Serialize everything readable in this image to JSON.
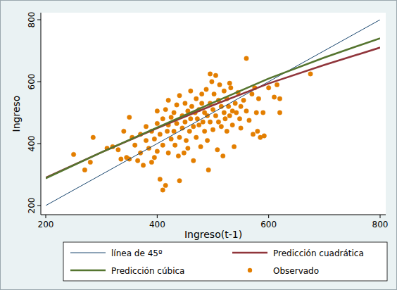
{
  "chart_data": {
    "type": "scatter",
    "x_label": "Ingreso(t-1)",
    "y_label": "Ingreso",
    "xlim": [
      200,
      800
    ],
    "ylim": [
      200,
      800
    ],
    "xticks": [
      200,
      400,
      600,
      800
    ],
    "yticks": [
      200,
      400,
      600,
      800
    ],
    "grid": false,
    "legend": "bottom",
    "series": [
      {
        "name": "línea de 45º",
        "type": "line",
        "color": "#1a476f",
        "line_style": "thin",
        "x": [
          200,
          800
        ],
        "values": [
          200,
          800
        ]
      },
      {
        "name": "Predicción cuadrática",
        "type": "line",
        "color": "#90353b",
        "line_style": "thick",
        "x": [
          200,
          300,
          400,
          500,
          600,
          700,
          800
        ],
        "values": [
          290,
          372,
          450,
          524,
          594,
          654,
          710
        ]
      },
      {
        "name": "Predicción cúbica",
        "type": "line",
        "color": "#55752f",
        "line_style": "thick",
        "x": [
          200,
          300,
          400,
          500,
          600,
          700,
          800
        ],
        "values": [
          288,
          372,
          452,
          532,
          610,
          678,
          740
        ]
      },
      {
        "name": "Observado",
        "type": "scatter",
        "color": "#e37e00",
        "marker": "circle",
        "x": [
          250,
          270,
          280,
          285,
          310,
          320,
          330,
          335,
          340,
          345,
          350,
          350,
          355,
          360,
          365,
          370,
          370,
          375,
          380,
          380,
          385,
          390,
          390,
          395,
          395,
          400,
          400,
          400,
          405,
          405,
          410,
          410,
          410,
          415,
          415,
          418,
          420,
          420,
          420,
          425,
          425,
          430,
          430,
          432,
          435,
          435,
          438,
          440,
          440,
          440,
          445,
          445,
          448,
          450,
          450,
          452,
          455,
          455,
          458,
          460,
          460,
          462,
          465,
          465,
          468,
          470,
          470,
          472,
          475,
          475,
          478,
          480,
          480,
          482,
          485,
          485,
          488,
          490,
          490,
          492,
          495,
          495,
          495,
          498,
          500,
          500,
          502,
          505,
          505,
          508,
          510,
          510,
          512,
          515,
          515,
          518,
          520,
          520,
          522,
          525,
          525,
          528,
          530,
          530,
          532,
          535,
          535,
          538,
          540,
          542,
          545,
          548,
          550,
          550,
          555,
          560,
          560,
          565,
          570,
          572,
          575,
          578,
          580,
          582,
          585,
          590,
          592,
          600,
          610,
          615,
          620,
          620,
          675
        ],
        "values": [
          365,
          315,
          340,
          420,
          385,
          390,
          380,
          350,
          440,
          355,
          485,
          350,
          420,
          395,
          345,
          430,
          370,
          330,
          410,
          455,
          385,
          340,
          440,
          415,
          355,
          505,
          465,
          375,
          285,
          430,
          480,
          250,
          395,
          265,
          510,
          440,
          540,
          460,
          370,
          415,
          485,
          500,
          440,
          395,
          525,
          465,
          360,
          555,
          280,
          420,
          490,
          450,
          370,
          530,
          470,
          410,
          505,
          385,
          440,
          570,
          480,
          520,
          455,
          345,
          500,
          545,
          420,
          480,
          510,
          460,
          390,
          560,
          530,
          470,
          500,
          440,
          575,
          490,
          410,
          315,
          625,
          530,
          470,
          600,
          510,
          445,
          560,
          620,
          490,
          380,
          540,
          470,
          590,
          520,
          455,
          360,
          500,
          570,
          480,
          545,
          440,
          520,
          595,
          490,
          580,
          505,
          460,
          390,
          530,
          500,
          565,
          480,
          520,
          450,
          540,
          675,
          505,
          475,
          560,
          430,
          580,
          500,
          440,
          545,
          420,
          500,
          425,
          580,
          550,
          590,
          500,
          545,
          625
        ]
      }
    ]
  }
}
